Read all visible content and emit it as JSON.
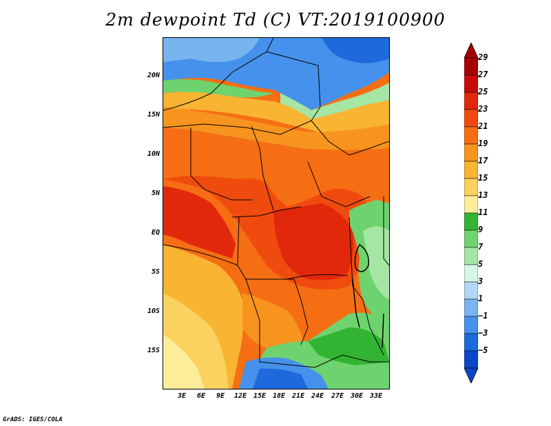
{
  "title": "2m dewpoint Td (C) VT:2019100900",
  "credit": "GrADS: IGES/COLA",
  "map": {
    "lat_labels": [
      "20N",
      "15N",
      "10N",
      "5N",
      "EQ",
      "5S",
      "10S",
      "15S"
    ],
    "lon_labels": [
      "3E",
      "6E",
      "9E",
      "12E",
      "15E",
      "18E",
      "21E",
      "24E",
      "27E",
      "30E",
      "33E"
    ]
  },
  "colorbar": {
    "labels": [
      "29",
      "27",
      "25",
      "23",
      "21",
      "19",
      "17",
      "15",
      "13",
      "11",
      "9",
      "7",
      "5",
      "3",
      "1",
      "−1",
      "−3",
      "−5"
    ],
    "colors": [
      "#a50000",
      "#c80a0a",
      "#e1280a",
      "#f04b0f",
      "#f56e14",
      "#f7941e",
      "#f9b432",
      "#fbd25f",
      "#fdec9a",
      "#32b432",
      "#6ed36e",
      "#a5e6a5",
      "#d7f7e6",
      "#b4d7f7",
      "#78b4f0",
      "#4691eb",
      "#1e69dc",
      "#0a46c8"
    ]
  }
}
